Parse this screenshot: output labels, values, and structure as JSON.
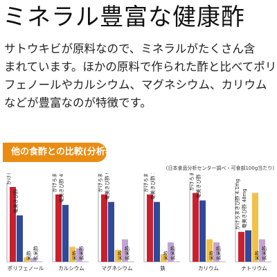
{
  "title": "ミネラル豊富な健康酢",
  "body_lines": [
    "サトウキビが原料なので、ミネラルがたくさん含",
    "まれています。ほかの原料で作られた酢と比べてポリ",
    "フェノールやカルシウム、マグネシウム、カリウム",
    "などが豊富なのが特徴です。"
  ],
  "badge": "他の食酢との比較(分析表)",
  "source_note": "(日本食品分析センター調べ・可食部100g当たり)",
  "colors": {
    "kakeroma": "#c9202f",
    "amami": "#2f4a9a",
    "kome": "#f2c14a",
    "genmai": "#c2a5d4",
    "badge": "#e98c12"
  },
  "chart_data": {
    "type": "bar",
    "title": "",
    "groups": [
      {
        "name": "ポリフェノール",
        "bars": [
          {
            "label": "かけろま",
            "value": 1.0,
            "value_text": "403mg"
          },
          {
            "label": "奄美きび酢",
            "value": 0.62,
            "value_text": ""
          },
          {
            "label": "米酢",
            "value": 0.06,
            "value_text": ""
          },
          {
            "label": "玄米酢",
            "value": 0.05,
            "value_text": ""
          }
        ]
      },
      {
        "name": "カルシウム",
        "bars": [
          {
            "label": "かけろま",
            "value": 0.9,
            "value_text": "148mg"
          },
          {
            "label": "奄美きび酢",
            "value": 0.76,
            "value_text": "47.5mg"
          },
          {
            "label": "米酢",
            "value": 0.2,
            "value_text": ""
          },
          {
            "label": "玄米酢",
            "value": 0.18,
            "value_text": ""
          }
        ]
      },
      {
        "name": "マグネシウム",
        "bars": [
          {
            "label": "かけろま",
            "value": 0.9,
            "value_text": "8.5mg"
          },
          {
            "label": "奄美きび酢",
            "value": 0.8,
            "value_text": "9.7mg"
          },
          {
            "label": "米酢",
            "value": 0.16,
            "value_text": ""
          },
          {
            "label": "玄米酢",
            "value": 0.3,
            "value_text": ""
          }
        ]
      },
      {
        "name": "鉄",
        "bars": [
          {
            "label": "かけろま",
            "value": 0.9,
            "value_text": "0.47mg"
          },
          {
            "label": "奄美きび酢",
            "value": 0.8,
            "value_text": "1.1mg"
          },
          {
            "label": "米酢",
            "value": 0.1,
            "value_text": ""
          },
          {
            "label": "玄米酢",
            "value": 0.26,
            "value_text": ""
          }
        ]
      },
      {
        "name": "カリウム",
        "bars": [
          {
            "label": "かけろま",
            "value": 0.92,
            "value_text": "120mg"
          },
          {
            "label": "奄美きび酢",
            "value": 0.82,
            "value_text": ""
          },
          {
            "label": "米酢",
            "value": 0.3,
            "value_text": ""
          },
          {
            "label": "玄米酢",
            "value": 0.26,
            "value_text": ""
          }
        ]
      },
      {
        "name": "ナトリウム",
        "bars": [
          {
            "label": "かけろま",
            "value": 0.4,
            "value_text": "4.1mg"
          },
          {
            "label": "奄美きび酢",
            "value": 0.42,
            "value_text": "48mg"
          },
          {
            "label": "米酢",
            "value": 0.92,
            "value_text": ""
          },
          {
            "label": "玄米酢",
            "value": 0.3,
            "value_text": ""
          }
        ]
      }
    ],
    "series_labels": {
      "かけろま": "かけろまきび酢",
      "奄美きび酢": "奄美きび酢",
      "米酢": "米酢",
      "玄米酢": "玄米酢"
    },
    "value_scale": "relative (unlabeled axis)",
    "grid": false,
    "legend": "none"
  }
}
